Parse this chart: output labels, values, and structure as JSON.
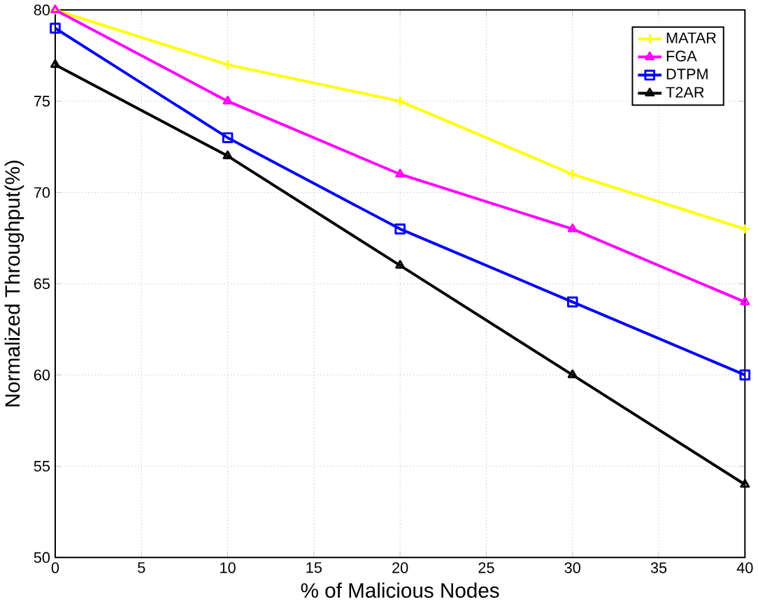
{
  "chart_data": {
    "type": "line",
    "xlabel": "% of Malicious Nodes",
    "ylabel": "Normalized Throughput(%)",
    "x": [
      0,
      10,
      20,
      30,
      40
    ],
    "series": [
      {
        "name": "MATAR",
        "color": "#ffff00",
        "marker": "cross",
        "values": [
          80,
          77,
          75,
          71,
          68
        ]
      },
      {
        "name": "FGA",
        "color": "#ff00ff",
        "marker": "triangle",
        "values": [
          80,
          75,
          71,
          68,
          64
        ]
      },
      {
        "name": "DTPM",
        "color": "#0000ff",
        "marker": "square",
        "values": [
          79,
          73,
          68,
          64,
          60
        ]
      },
      {
        "name": "T2AR",
        "color": "#000000",
        "marker": "triangle",
        "values": [
          77,
          72,
          66,
          60,
          54
        ]
      }
    ],
    "xlim": [
      0,
      40
    ],
    "xticks": [
      0,
      5,
      10,
      15,
      20,
      25,
      30,
      35,
      40
    ],
    "ylim": [
      50,
      80
    ],
    "yticks": [
      50,
      55,
      60,
      65,
      70,
      75,
      80
    ],
    "grid": true,
    "legend": "top right",
    "line_style": "solid"
  }
}
